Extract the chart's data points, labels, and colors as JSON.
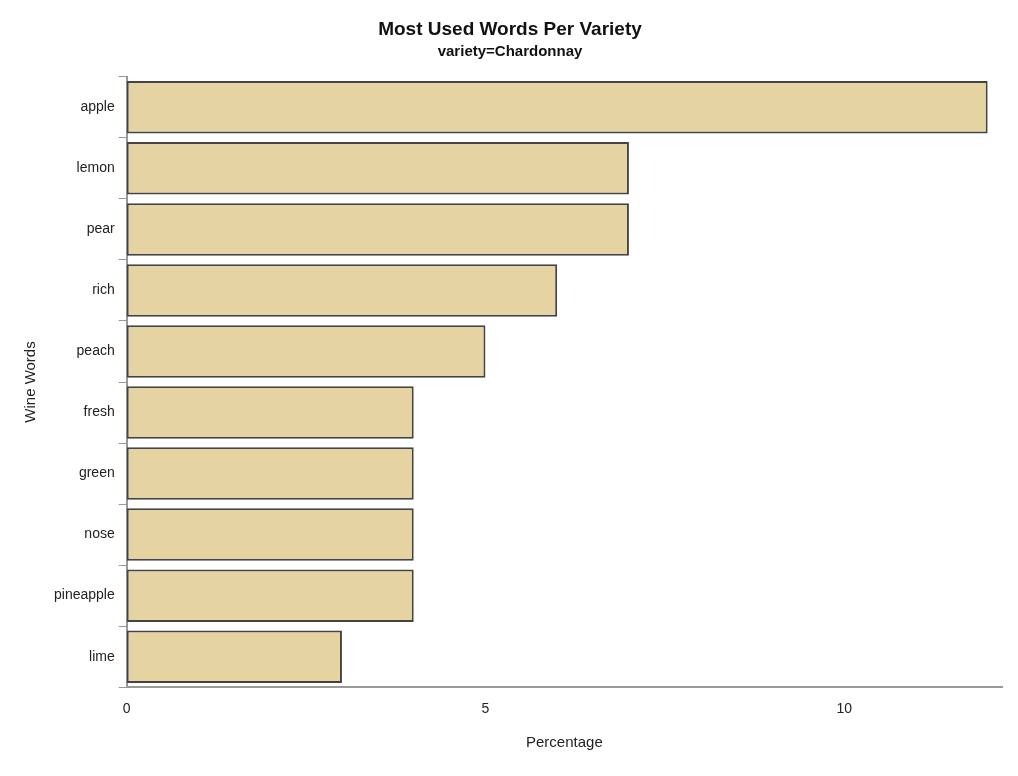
{
  "chart_data": {
    "type": "bar",
    "orientation": "horizontal",
    "title": "Most Used Words Per Variety",
    "subtitle": "variety=Chardonnay",
    "xlabel": "Percentage",
    "ylabel": "Wine Words",
    "categories": [
      "apple",
      "lemon",
      "pear",
      "rich",
      "peach",
      "fresh",
      "green",
      "nose",
      "pineapple",
      "lime"
    ],
    "values": [
      12,
      7,
      7,
      6,
      5,
      4,
      4,
      4,
      4,
      3
    ],
    "color": "#e5d3a2",
    "xlim": [
      0,
      12.2
    ],
    "xticks": [
      0,
      5,
      10
    ],
    "grid": false,
    "legend": false
  }
}
